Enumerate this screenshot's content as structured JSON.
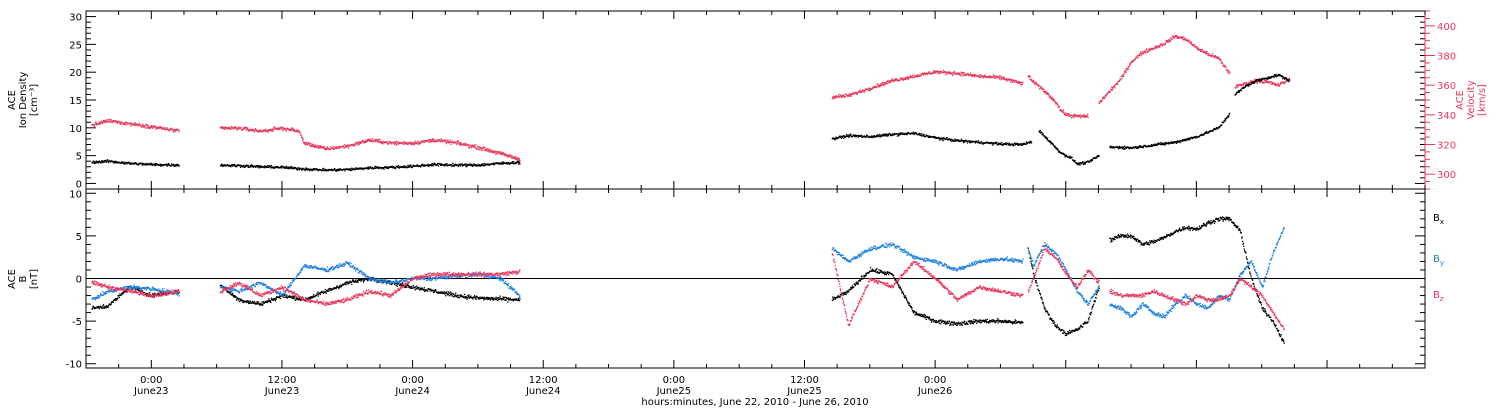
{
  "chart_data": [
    {
      "type": "scatter",
      "panel": "top",
      "ylabel": [
        "ACE",
        "Ion Density",
        "[cm⁻³]"
      ],
      "ylabel_right": [
        "ACE",
        "Velocity",
        "[km/s]"
      ],
      "ylim": [
        -1,
        31
      ],
      "yticks": [
        0,
        5,
        10,
        15,
        20,
        25,
        30
      ],
      "ylim_right": [
        290,
        410
      ],
      "yticks_right": [
        300,
        320,
        340,
        360,
        380,
        400
      ],
      "x_unit": "hours since 00:00 June 22, 2010",
      "series": [
        {
          "color": "#000000",
          "axis": "left",
          "segments": [
            {
              "x": [
                18.5,
                20,
                22,
                24,
                26.5
              ],
              "y": [
                3.8,
                4.0,
                3.6,
                3.4,
                3.3
              ]
            },
            {
              "x": [
                30.3,
                32,
                34,
                36,
                38,
                40,
                42,
                44,
                46,
                48,
                50,
                52,
                54,
                56,
                57.8
              ],
              "y": [
                3.3,
                3.2,
                3.0,
                2.9,
                2.6,
                2.4,
                2.5,
                2.8,
                2.9,
                3.1,
                3.4,
                3.3,
                3.3,
                3.6,
                3.8
              ]
            },
            {
              "x": [
                86.5,
                88,
                90,
                92,
                94,
                96,
                98,
                100,
                102,
                104,
                104.8
              ],
              "y": [
                8.0,
                8.6,
                8.4,
                8.8,
                9.0,
                8.2,
                7.7,
                7.4,
                7.1,
                7.0,
                7.5
              ]
            },
            {
              "x": [
                105.5,
                106.5,
                107.5,
                108.5,
                109,
                110,
                111
              ],
              "y": [
                9.5,
                7.5,
                5.5,
                4.5,
                3.5,
                3.8,
                5.0
              ]
            },
            {
              "x": [
                112,
                113,
                114,
                116,
                118,
                120,
                122,
                123
              ],
              "y": [
                6.5,
                6.5,
                6.4,
                6.9,
                7.4,
                8.4,
                10.0,
                12.5
              ]
            },
            {
              "x": [
                123.5,
                124.5,
                125.5,
                126.5,
                127.5,
                128.5
              ],
              "y": [
                16.0,
                17.5,
                18.5,
                19.0,
                19.5,
                18.5
              ]
            }
          ]
        },
        {
          "color": "#e8375c",
          "axis": "right",
          "segments": [
            {
              "x": [
                18.5,
                20,
                22,
                24,
                26.5
              ],
              "y": [
                333,
                336,
                334,
                332,
                329
              ]
            },
            {
              "x": [
                30.3,
                32,
                34,
                36,
                37.5,
                38,
                40,
                42,
                44,
                46,
                48,
                50,
                52,
                54,
                56,
                57.8
              ],
              "y": [
                331,
                331,
                329,
                331,
                329,
                321,
                317,
                319,
                323,
                321,
                321,
                323,
                321,
                318,
                314,
                310
              ]
            },
            {
              "x": [
                86.5,
                88,
                90,
                92,
                94,
                96,
                98,
                100,
                102,
                104
              ],
              "y": [
                352,
                353,
                358,
                363,
                366,
                369,
                368,
                366,
                365,
                361
              ]
            },
            {
              "x": [
                104.5,
                105,
                106,
                107,
                107.5,
                108,
                109,
                110
              ],
              "y": [
                366,
                362,
                356,
                349,
                343,
                340,
                339,
                339
              ]
            },
            {
              "x": [
                111,
                112,
                113,
                114,
                115,
                116,
                117,
                118,
                119,
                120,
                121,
                122,
                123
              ],
              "y": [
                348,
                356,
                364,
                376,
                382,
                385,
                388,
                393,
                391,
                385,
                381,
                378,
                368
              ]
            },
            {
              "x": [
                123.5,
                124.5,
                125.5,
                126.5,
                127.5,
                128.5
              ],
              "y": [
                359,
                361,
                363,
                362,
                360,
                364
              ]
            }
          ]
        }
      ]
    },
    {
      "type": "scatter",
      "panel": "bottom",
      "ylabel": [
        "ACE",
        "B",
        "[nT]"
      ],
      "ylim": [
        -10.5,
        10.5
      ],
      "yticks": [
        -10,
        -5,
        0,
        5,
        10
      ],
      "zero_line": true,
      "x_unit": "hours since 00:00 June 22, 2010",
      "legend": [
        {
          "label": "Bx",
          "base": "B",
          "sub": "x",
          "color": "#000000"
        },
        {
          "label": "By",
          "base": "B",
          "sub": "y",
          "color": "#2080e0"
        },
        {
          "label": "Bz",
          "base": "B",
          "sub": "z",
          "color": "#e8375c"
        }
      ],
      "series": [
        {
          "name": "Bx",
          "color": "#000000",
          "segments": [
            {
              "x": [
                18.5,
                20,
                22,
                24,
                26.5
              ],
              "y": [
                -3.5,
                -3.2,
                -1.0,
                -2.0,
                -1.5
              ]
            },
            {
              "x": [
                30.3,
                32,
                34,
                36,
                38,
                40,
                42,
                44,
                46,
                48,
                50,
                52,
                54,
                56,
                57.8
              ],
              "y": [
                -0.8,
                -2.5,
                -3.0,
                -2.0,
                -2.5,
                -1.5,
                -0.5,
                0.0,
                -0.5,
                -1.0,
                -1.5,
                -2.0,
                -2.3,
                -2.4,
                -2.5
              ]
            },
            {
              "x": [
                86.5,
                88,
                90,
                92,
                94,
                96,
                98,
                100,
                102,
                104
              ],
              "y": [
                -2.5,
                -1.5,
                1.0,
                0.5,
                -4.0,
                -5.0,
                -5.3,
                -5.0,
                -5.0,
                -5.2
              ]
            },
            {
              "x": [
                104.5,
                105,
                106,
                107,
                108,
                109,
                110,
                111
              ],
              "y": [
                3.5,
                0.5,
                -3.5,
                -5.5,
                -6.5,
                -6.0,
                -5.0,
                -1.0
              ]
            },
            {
              "x": [
                112,
                113,
                114,
                115,
                116,
                117,
                118,
                119,
                120,
                121,
                122,
                123,
                124,
                125,
                126,
                127,
                128
              ],
              "y": [
                4.5,
                5.0,
                5.0,
                4.0,
                4.3,
                4.8,
                5.5,
                6.0,
                5.8,
                6.5,
                7.0,
                7.0,
                5.5,
                0.0,
                -3.5,
                -5.0,
                -7.5
              ]
            }
          ]
        },
        {
          "name": "By",
          "color": "#2080e0",
          "segments": [
            {
              "x": [
                18.5,
                20,
                22,
                24,
                26.5
              ],
              "y": [
                -2.5,
                -1.5,
                -1.0,
                -1.2,
                -1.8
              ]
            },
            {
              "x": [
                30.3,
                32,
                34,
                36,
                38,
                40,
                42,
                44,
                46,
                48,
                50,
                52,
                54,
                56,
                57.8
              ],
              "y": [
                -1.0,
                -1.5,
                -0.5,
                -2.0,
                1.5,
                1.0,
                1.8,
                0.0,
                -0.5,
                0.0,
                0.0,
                0.3,
                0.5,
                0.0,
                -2.0
              ]
            },
            {
              "x": [
                86.5,
                88,
                90,
                92,
                94,
                96,
                98,
                100,
                102,
                104
              ],
              "y": [
                3.5,
                2.0,
                3.5,
                4.0,
                2.5,
                2.0,
                1.0,
                2.0,
                2.3,
                2.0
              ]
            },
            {
              "x": [
                104.5,
                105,
                106,
                107,
                108,
                109,
                110,
                111
              ],
              "y": [
                3.5,
                1.5,
                4.0,
                3.0,
                1.0,
                -1.5,
                -3.0,
                -1.0
              ]
            },
            {
              "x": [
                112,
                113,
                114,
                115,
                116,
                117,
                118,
                119,
                120,
                121,
                122,
                123,
                124,
                125,
                126,
                127,
                128
              ],
              "y": [
                -3.0,
                -3.5,
                -4.5,
                -3.0,
                -4.0,
                -4.5,
                -3.0,
                -2.0,
                -3.0,
                -3.5,
                -2.0,
                -2.5,
                0.5,
                2.0,
                -1.0,
                3.0,
                6.0
              ]
            }
          ]
        },
        {
          "name": "Bz",
          "color": "#e8375c",
          "segments": [
            {
              "x": [
                18.5,
                20,
                22,
                24,
                26.5
              ],
              "y": [
                -0.5,
                -1.0,
                -1.5,
                -2.0,
                -1.5
              ]
            },
            {
              "x": [
                30.3,
                32,
                34,
                36,
                38,
                40,
                42,
                44,
                46,
                48,
                50,
                52,
                54,
                56,
                57.8
              ],
              "y": [
                -1.5,
                -0.5,
                -2.0,
                -1.0,
                -2.5,
                -3.0,
                -2.5,
                -1.5,
                -2.0,
                0.0,
                0.5,
                0.5,
                0.5,
                0.5,
                0.8
              ]
            },
            {
              "x": [
                86.5,
                88,
                90,
                92,
                94,
                96,
                98,
                100,
                102,
                104
              ],
              "y": [
                3.0,
                -5.5,
                0.0,
                -1.0,
                2.0,
                0.0,
                -2.5,
                -1.0,
                -1.5,
                -2.0
              ]
            },
            {
              "x": [
                104.5,
                105,
                106,
                107,
                108,
                109,
                110,
                111
              ],
              "y": [
                -1.5,
                0.0,
                3.5,
                2.5,
                0.5,
                -1.0,
                1.0,
                -0.5
              ]
            },
            {
              "x": [
                112,
                113,
                114,
                115,
                116,
                117,
                118,
                119,
                120,
                121,
                122,
                123,
                124,
                125,
                126,
                127,
                128
              ],
              "y": [
                -1.5,
                -2.0,
                -2.0,
                -2.0,
                -1.5,
                -2.0,
                -2.5,
                -3.0,
                -2.0,
                -2.5,
                -2.5,
                -2.0,
                0.0,
                -1.0,
                -2.0,
                -4.0,
                -6.0
              ]
            }
          ]
        }
      ]
    }
  ],
  "x_axis": {
    "xlim": [
      18,
      141
    ],
    "ticks": [
      {
        "x": 24,
        "time": "0:00",
        "date": "June23"
      },
      {
        "x": 36,
        "time": "12:00",
        "date": "June23"
      },
      {
        "x": 48,
        "time": "0:00",
        "date": "June24"
      },
      {
        "x": 60,
        "time": "12:00",
        "date": "June24"
      },
      {
        "x": 72,
        "time": "0:00",
        "date": "June25"
      },
      {
        "x": 84,
        "time": "12:00",
        "date": "June25"
      },
      {
        "x": 96,
        "time": "0:00",
        "date": "June26"
      }
    ],
    "xlabel": "hours:minutes, June 22, 2010 - June 26, 2010"
  }
}
